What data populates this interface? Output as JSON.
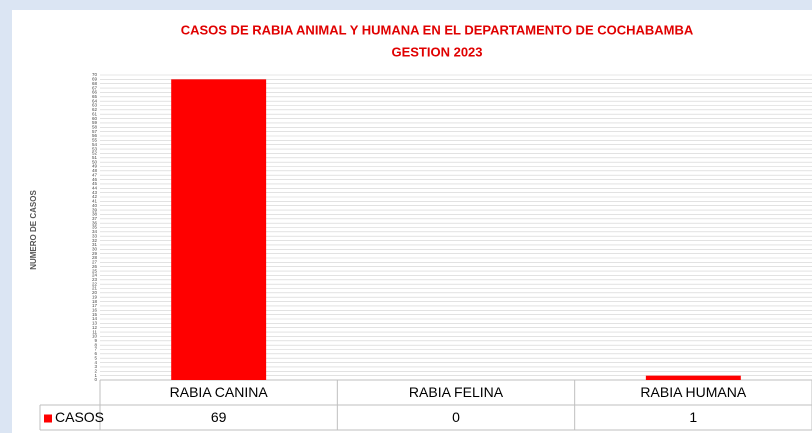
{
  "chart_data": {
    "type": "bar",
    "title": [
      "CASOS DE RABIA ANIMAL Y HUMANA EN EL DEPARTAMENTO DE COCHABAMBA",
      "GESTION 2023"
    ],
    "y_axis_label": "NUMERO DE CASOS",
    "categories": [
      "RABIA CANINA",
      "RABIA FELINA",
      "RABIA HUMANA"
    ],
    "series": [
      {
        "name": "CASOS",
        "color": "#ff0000",
        "values": [
          69,
          0,
          1
        ]
      }
    ],
    "ylim": [
      0,
      70
    ],
    "yticks": [
      0,
      1,
      2,
      3,
      4,
      5,
      6,
      7,
      8,
      9,
      10,
      11,
      12,
      13,
      14,
      15,
      16,
      17,
      18,
      19,
      20,
      21,
      22,
      23,
      24,
      25,
      26,
      27,
      28,
      29,
      30,
      31,
      32,
      33,
      34,
      35,
      36,
      37,
      38,
      39,
      40,
      41,
      42,
      43,
      44,
      45,
      46,
      47,
      48,
      49,
      50,
      51,
      52,
      53,
      54,
      55,
      56,
      57,
      58,
      59,
      60,
      61,
      62,
      63,
      64,
      65,
      66,
      67,
      68,
      69,
      70
    ],
    "grid": true
  }
}
